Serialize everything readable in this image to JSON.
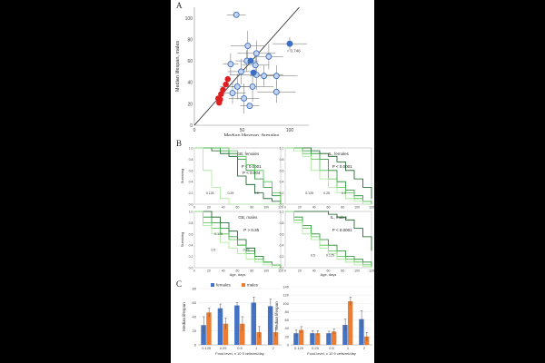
{
  "panel_labels": {
    "a": "A",
    "b": "B",
    "c": "C"
  },
  "chart_data": [
    {
      "id": "A",
      "type": "scatter",
      "xlabel": "Median lifespan, females",
      "ylabel": "Median lifespan, males",
      "xlim": [
        0,
        120
      ],
      "ylim": [
        0,
        110
      ],
      "xticks": [
        0,
        50,
        100
      ],
      "yticks": [
        0,
        20,
        40,
        60,
        80,
        100
      ],
      "identity_line": true,
      "annotation": "= 0.746",
      "colors": {
        "red": "#dd1f1f",
        "blue": "#3d6fc4",
        "open_fill": "#c4d4ee"
      },
      "series": [
        {
          "style": "red-filled",
          "points": [
            {
              "x": 35,
              "y": 43
            },
            {
              "x": 33,
              "y": 38
            },
            {
              "x": 30,
              "y": 33
            },
            {
              "x": 28,
              "y": 29
            },
            {
              "x": 25,
              "y": 25
            },
            {
              "x": 27,
              "y": 24
            },
            {
              "x": 26,
              "y": 21
            }
          ]
        },
        {
          "style": "blue-open",
          "points": [
            {
              "x": 44,
              "y": 103,
              "ex": 10,
              "ey": 0
            },
            {
              "x": 56,
              "y": 74,
              "ex": 18,
              "ey": 14
            },
            {
              "x": 65,
              "y": 67,
              "ex": 20,
              "ey": 12
            },
            {
              "x": 78,
              "y": 64,
              "ex": 15,
              "ey": 12
            },
            {
              "x": 55,
              "y": 60,
              "ex": 12,
              "ey": 10
            },
            {
              "x": 38,
              "y": 57,
              "ex": 8,
              "ey": 10
            },
            {
              "x": 64,
              "y": 56,
              "ex": 14,
              "ey": 10
            },
            {
              "x": 49,
              "y": 50,
              "ex": 14,
              "ey": 12
            },
            {
              "x": 65,
              "y": 47,
              "ex": 28,
              "ey": 14
            },
            {
              "x": 73,
              "y": 46,
              "ex": 15,
              "ey": 10
            },
            {
              "x": 86,
              "y": 46,
              "ex": 22,
              "ey": 10
            },
            {
              "x": 61,
              "y": 36,
              "ex": 22,
              "ey": 14
            },
            {
              "x": 45,
              "y": 36,
              "ex": 18,
              "ey": 12
            },
            {
              "x": 40,
              "y": 30,
              "ex": 14,
              "ey": 10
            },
            {
              "x": 86,
              "y": 31,
              "ex": 20,
              "ey": 10
            },
            {
              "x": 52,
              "y": 25,
              "ex": 16,
              "ey": 14
            },
            {
              "x": 58,
              "y": 18,
              "ex": 10,
              "ey": 0
            }
          ]
        },
        {
          "style": "blue-filled",
          "points": [
            {
              "x": 100,
              "y": 76,
              "ex": 18,
              "ey": 6
            },
            {
              "x": 59,
              "y": 60
            },
            {
              "x": 62,
              "y": 49
            }
          ]
        }
      ]
    },
    {
      "id": "B",
      "type": "line",
      "subtype": "survival-step",
      "panels": [
        {
          "title": "GB, females",
          "pvalues": [
            "P < 0.0001",
            "P < 0.004"
          ],
          "ylabel": "Surviving",
          "xlabel": "",
          "labels": [
            "0.125",
            "0.25",
            "0.5"
          ]
        },
        {
          "title": "IL, females",
          "pvalues": [
            "P < 0.0001"
          ],
          "ylabel": "",
          "xlabel": "",
          "labels": [
            "0.125",
            "0.25",
            "0.5"
          ]
        },
        {
          "title": "GB, males",
          "pvalues": [
            "P > 0.35"
          ],
          "ylabel": "Surviving",
          "xlabel": "Age, days",
          "labels": [
            "0.125",
            "0.5",
            "0.25"
          ]
        },
        {
          "title": "IL, males",
          "pvalues": [
            "P < 0.0001"
          ],
          "ylabel": "",
          "xlabel": "Age, days",
          "labels": [
            "0.5",
            "0.125"
          ]
        }
      ],
      "xticks": [
        "0",
        "20",
        "40",
        "60",
        "80",
        "100",
        "120"
      ],
      "yticks": [
        "0.0",
        "0.2",
        "0.4",
        "0.6",
        "0.8",
        "1.0"
      ],
      "colors": [
        "#0f5a1f",
        "#1e8a2e",
        "#4cc24c",
        "#a8e89a"
      ]
    },
    {
      "id": "C-left",
      "type": "bar",
      "categories": [
        "0.125",
        "0.25",
        "0.5",
        "1",
        "2"
      ],
      "series": [
        {
          "name": "females",
          "values": [
            28,
            52,
            56,
            60,
            55
          ],
          "errors": [
            12,
            6,
            4,
            8,
            10
          ],
          "color": "#4472c4"
        },
        {
          "name": "males",
          "values": [
            46,
            30,
            30,
            18,
            18
          ],
          "errors": [
            6,
            8,
            10,
            8,
            6
          ],
          "color": "#ed7d31"
        }
      ],
      "ylabel": "Median lifespan",
      "xlabel": "Food level, x 10 9 cells/ml/day",
      "ylim": [
        0,
        80
      ],
      "yticks": [
        0,
        20,
        40,
        60,
        80
      ],
      "legend": "top"
    },
    {
      "id": "C-right",
      "type": "bar",
      "categories": [
        "0.125",
        "0.25",
        "0.5",
        "1",
        "2"
      ],
      "series": [
        {
          "name": "females",
          "values": [
            28,
            28,
            28,
            48,
            62
          ],
          "errors": [
            8,
            6,
            5,
            14,
            20
          ],
          "color": "#4472c4"
        },
        {
          "name": "males",
          "values": [
            36,
            28,
            32,
            105,
            20
          ],
          "errors": [
            8,
            6,
            6,
            10,
            10
          ],
          "color": "#ed7d31"
        }
      ],
      "ylabel": "Median lifespan",
      "xlabel": "Food level, x 10 9 cells/ml/day",
      "ylim": [
        0,
        140
      ],
      "yticks": [
        0,
        20,
        40,
        60,
        80,
        100,
        120,
        140
      ]
    }
  ]
}
